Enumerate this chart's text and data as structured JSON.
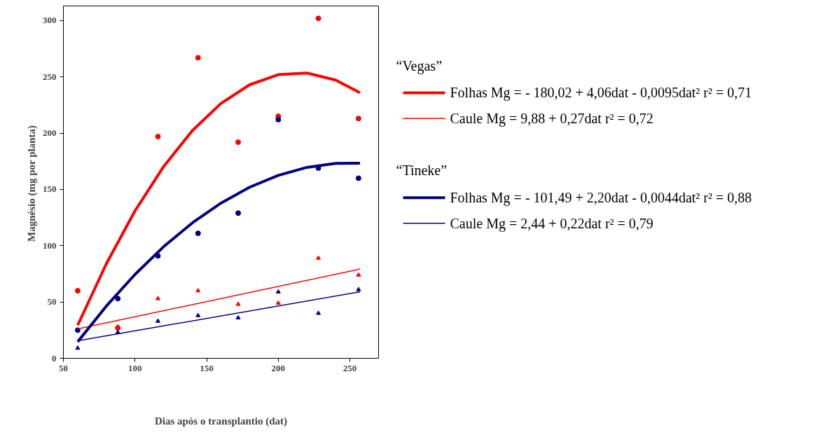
{
  "chart_data": {
    "type": "scatter",
    "xlabel": "Dias após o transplantio (dat)",
    "ylabel": "Magnésio (mg  por planta)",
    "xlim": [
      50,
      270
    ],
    "ylim": [
      0,
      313
    ],
    "xticks": [
      50,
      100,
      150,
      200,
      250
    ],
    "yticks": [
      0,
      50,
      100,
      150,
      200,
      250,
      300
    ],
    "grid": false,
    "legend": "right",
    "annotations": [
      "“Vegas”",
      "“Tineke”"
    ],
    "x": [
      60,
      88,
      116,
      144,
      172,
      200,
      228,
      256
    ],
    "series": [
      {
        "marker": "circle",
        "color": "#ff0000",
        "values": [
          60,
          27,
          197,
          267,
          192,
          215,
          302,
          213
        ]
      },
      {
        "marker": "triangle",
        "color": "#ff0000",
        "values": [
          null,
          28,
          53,
          60,
          48,
          49,
          89,
          74
        ]
      },
      {
        "marker": "circle",
        "color": "#000080",
        "values": [
          25,
          53,
          91,
          111,
          129,
          212,
          169,
          160
        ]
      },
      {
        "marker": "triangle",
        "color": "#000080",
        "values": [
          9,
          23,
          33,
          38,
          36,
          59,
          40,
          61
        ]
      },
      {
        "type": "line",
        "name": "Folhas  Mg = - 180,02 + 4,06dat - 0,0095dat²  r² = 0,71",
        "color": "#ff0000",
        "x": [
          60,
          80,
          100,
          120,
          140,
          160,
          180,
          200,
          220,
          240,
          257
        ],
        "values": [
          29.4,
          84.0,
          131.0,
          170.4,
          202.2,
          226.4,
          243.0,
          252.0,
          253.4,
          247.2,
          235.9
        ]
      },
      {
        "type": "line",
        "name": "Caule   Mg = 9,88 + 0,27dat                                r² = 0,72",
        "color": "#ff0000",
        "x": [
          60,
          257
        ],
        "values": [
          26.1,
          79.3
        ]
      },
      {
        "type": "line",
        "name": "Folhas  Mg = - 101,49 + 2,20dat - 0,0044dat²  r² = 0,88",
        "color": "#000080",
        "x": [
          60,
          80,
          100,
          120,
          140,
          160,
          180,
          200,
          220,
          240,
          257
        ],
        "values": [
          14.7,
          46.4,
          74.5,
          99.2,
          120.3,
          137.9,
          152.0,
          162.5,
          169.6,
          173.1,
          173.3
        ]
      },
      {
        "type": "line",
        "name": "Caule   Mg =  2,44 + 0,22dat                               r² = 0,79",
        "color": "#000080",
        "x": [
          60,
          257
        ],
        "values": [
          15.6,
          59.0
        ]
      }
    ]
  }
}
